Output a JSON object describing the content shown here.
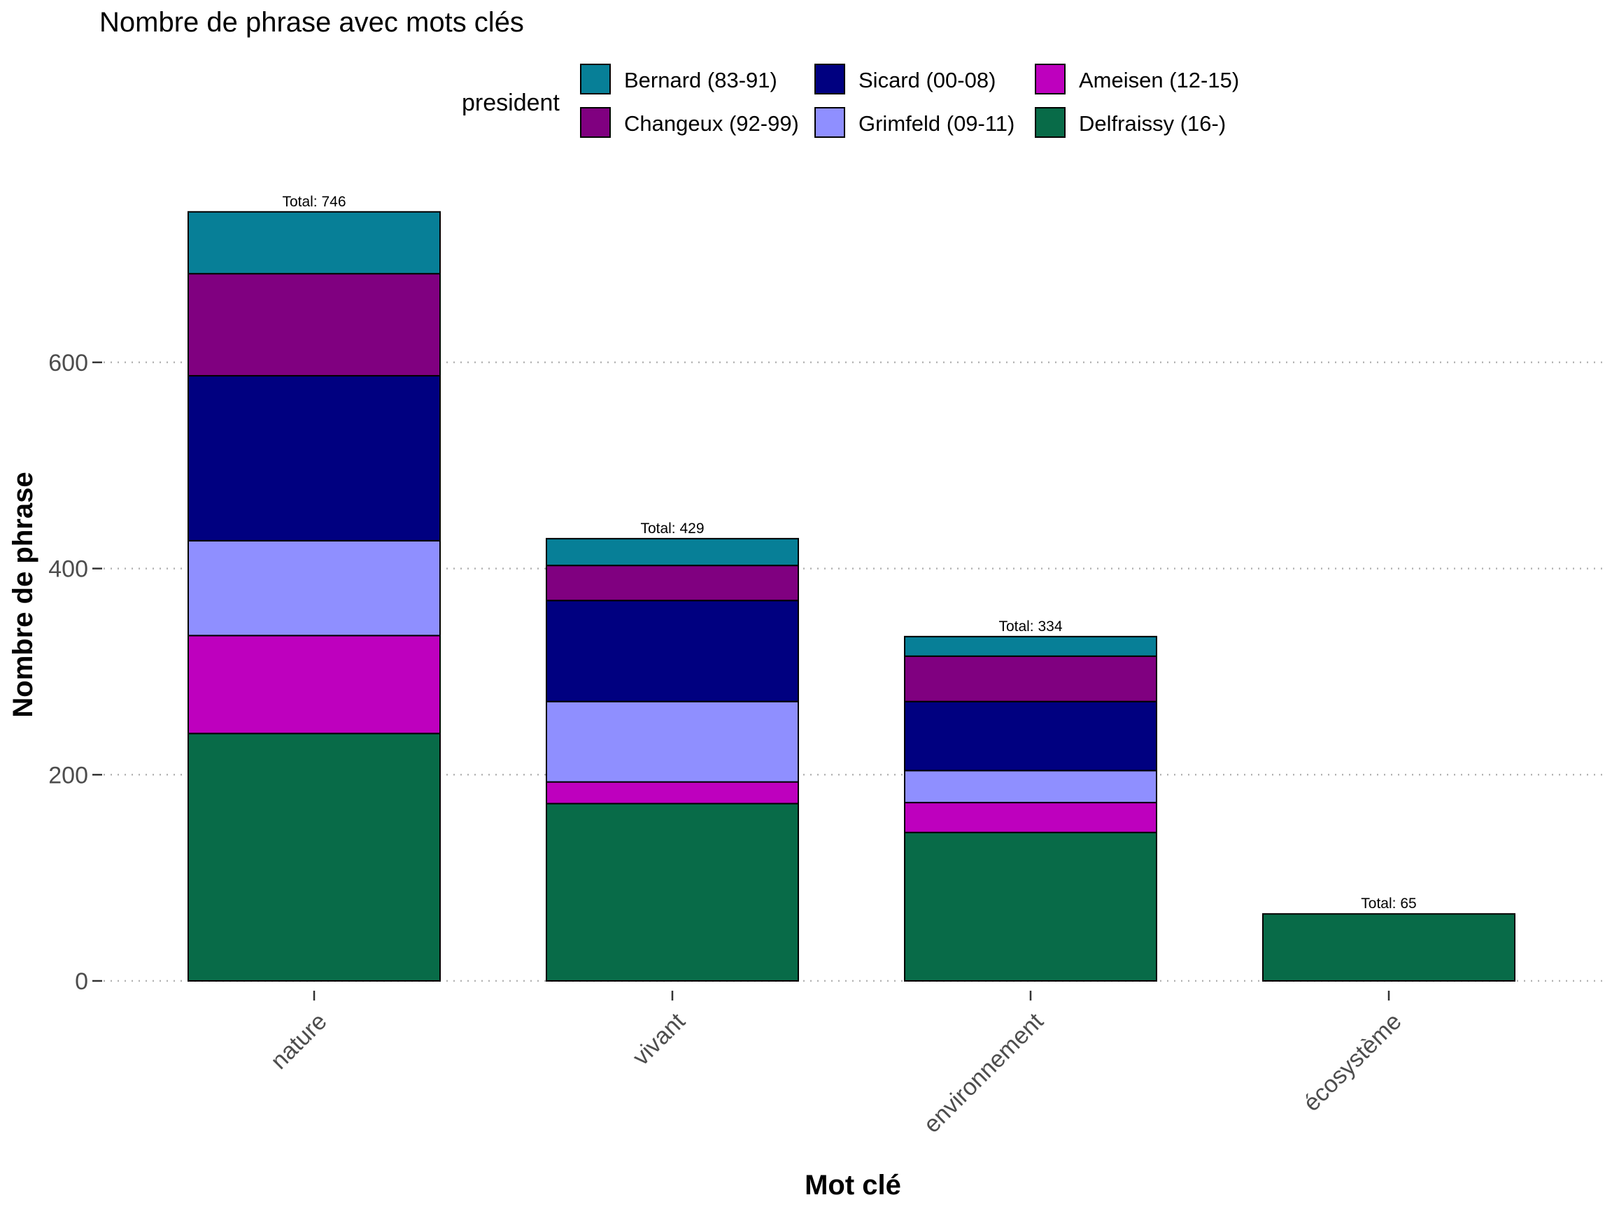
{
  "chart_data": {
    "type": "bar",
    "stacked": true,
    "title": "Nombre de phrase avec mots clés",
    "xlabel": "Mot clé",
    "ylabel": "Nombre de phrase",
    "categories": [
      "nature",
      "vivant",
      "environnement",
      "écosystème"
    ],
    "ylim": [
      0,
      770
    ],
    "yticks": [
      0,
      200,
      400,
      600
    ],
    "grid": "horizontal dotted",
    "legend": {
      "title": "president",
      "position": "top"
    },
    "series": [
      {
        "name": "Delfraissy (16-)",
        "color": "#086B48",
        "values": [
          240,
          172,
          144,
          65
        ]
      },
      {
        "name": "Ameisen (12-15)",
        "color": "#BE00BE",
        "values": [
          95,
          21,
          29,
          0
        ]
      },
      {
        "name": "Grimfeld (09-11)",
        "color": "#8F8FFF",
        "values": [
          92,
          78,
          31,
          0
        ]
      },
      {
        "name": "Sicard (00-08)",
        "color": "#000080",
        "values": [
          160,
          98,
          67,
          0
        ]
      },
      {
        "name": "Changeux (92-99)",
        "color": "#800080",
        "values": [
          99,
          34,
          44,
          0
        ]
      },
      {
        "name": "Bernard (83-91)",
        "color": "#077F97",
        "values": [
          60,
          26,
          19,
          0
        ]
      }
    ],
    "legend_order": [
      "Bernard (83-91)",
      "Changeux (92-99)",
      "Sicard (00-08)",
      "Grimfeld (09-11)",
      "Ameisen (12-15)",
      "Delfraissy (16-)"
    ],
    "total_label_prefix": "Total: ",
    "totals": [
      746,
      429,
      334,
      65
    ]
  }
}
